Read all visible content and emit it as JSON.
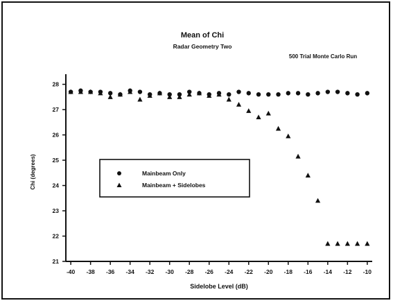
{
  "chart_data": {
    "type": "scatter",
    "title": "Mean of Chi",
    "subtitle": "Radar Geometry Two",
    "annotation": "500 Trial Monte Carlo Run",
    "xlabel": "Sidelobe Level (dB)",
    "ylabel": "Chi (degrees)",
    "xlim": [
      -40.5,
      -9.5
    ],
    "ylim": [
      21,
      28.4
    ],
    "x_ticks": [
      -40,
      -38,
      -36,
      -34,
      -32,
      -30,
      -28,
      -26,
      -24,
      -22,
      -20,
      -18,
      -16,
      -14,
      -12,
      -10
    ],
    "x_tick_labels": [
      "-40",
      "-38",
      "-36",
      "-34",
      "-32",
      "-30",
      "-28",
      "-26",
      "-24",
      "-22",
      "-20",
      "-18",
      "-16",
      "-14",
      "-12",
      "-10"
    ],
    "y_ticks": [
      21,
      22,
      23,
      24,
      25,
      26,
      27,
      28
    ],
    "y_tick_labels": [
      "21",
      "22",
      "23",
      "24",
      "25",
      "26",
      "27",
      "28"
    ],
    "legend_position": "center-left",
    "series": [
      {
        "name": "Mainbeam Only",
        "marker": "circle",
        "x": [
          -40,
          -39,
          -38,
          -37,
          -36,
          -35,
          -34,
          -33,
          -32,
          -31,
          -30,
          -29,
          -28,
          -27,
          -26,
          -25,
          -24,
          -23,
          -22,
          -21,
          -20,
          -19,
          -18,
          -17,
          -16,
          -15,
          -14,
          -13,
          -12,
          -11,
          -10
        ],
        "y": [
          27.7,
          27.75,
          27.7,
          27.7,
          27.65,
          27.6,
          27.75,
          27.7,
          27.6,
          27.65,
          27.6,
          27.6,
          27.7,
          27.65,
          27.6,
          27.65,
          27.6,
          27.7,
          27.65,
          27.6,
          27.6,
          27.6,
          27.65,
          27.65,
          27.6,
          27.65,
          27.7,
          27.7,
          27.65,
          27.6,
          27.65
        ]
      },
      {
        "name": "Mainbeam + Sidelobes",
        "marker": "triangle",
        "x": [
          -40,
          -39,
          -38,
          -37,
          -36,
          -35,
          -34,
          -33,
          -32,
          -31,
          -30,
          -29,
          -28,
          -27,
          -26,
          -25,
          -24,
          -23,
          -22,
          -21,
          -20,
          -19,
          -18,
          -17,
          -16,
          -15,
          -14,
          -13,
          -12,
          -11,
          -10
        ],
        "y": [
          27.7,
          27.7,
          27.7,
          27.65,
          27.5,
          27.6,
          27.7,
          27.4,
          27.55,
          27.65,
          27.5,
          27.5,
          27.6,
          27.65,
          27.55,
          27.6,
          27.4,
          27.2,
          26.95,
          26.7,
          26.85,
          26.25,
          25.95,
          25.15,
          24.4,
          23.4,
          21.7,
          21.7,
          21.7,
          21.7,
          21.7
        ]
      }
    ]
  }
}
